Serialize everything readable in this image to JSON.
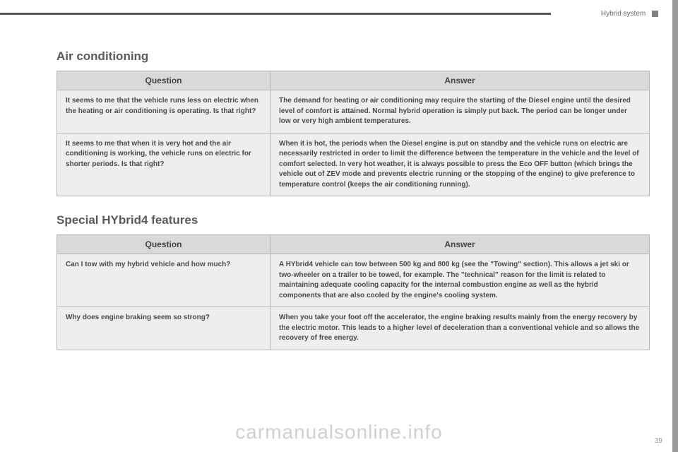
{
  "header": {
    "corner_text": "Hybrid system"
  },
  "section1": {
    "title": "Air conditioning",
    "headers": {
      "q": "Question",
      "a": "Answer"
    },
    "rows": [
      {
        "q": "It seems to me that the vehicle runs less on electric when the heating or air conditioning is operating. Is that right?",
        "a": "The demand for heating or air conditioning may require the starting of the Diesel engine until the desired level of comfort is attained.\nNormal hybrid operation is simply put back. The period can be longer under low or very high ambient temperatures."
      },
      {
        "q": "It seems to me that when it is very hot and the air conditioning is working, the vehicle runs on electric for shorter periods. Is that right?",
        "a": "When it is hot, the periods when the Diesel engine is put on standby and the vehicle runs on electric are necessarily restricted in order to limit the difference between the temperature in the vehicle and the level of comfort selected.\nIn very hot weather, it is always possible to press the Eco OFF button (which brings the vehicle out of ZEV mode and prevents electric running or the stopping of the engine) to give preference to temperature control (keeps the air conditioning running)."
      }
    ]
  },
  "section2": {
    "title": "Special HYbrid4 features",
    "headers": {
      "q": "Question",
      "a": "Answer"
    },
    "rows": [
      {
        "q": "Can I tow with my hybrid vehicle and how much?",
        "a": "A HYbrid4 vehicle can tow between 500 kg and 800 kg (see the \"Towing\" section).\nThis allows a jet ski or two-wheeler on a trailer to be towed, for example.\nThe \"technical\" reason for the limit is related to maintaining adequate cooling capacity for the internal combustion engine as well as the hybrid components that are also cooled by the engine's cooling system."
      },
      {
        "q": "Why does engine braking seem so strong?",
        "a": "When you take your foot off the accelerator, the engine braking results mainly from the energy recovery by the electric motor.\nThis leads to a higher level of deceleration than a conventional vehicle and so allows the recovery of free energy."
      }
    ]
  },
  "footer": {
    "watermark": "carmanualsonline.info",
    "page": "39"
  }
}
